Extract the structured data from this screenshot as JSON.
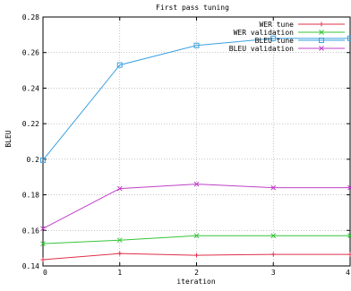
{
  "chart_data": {
    "type": "line",
    "title": "First pass tuning",
    "xlabel": "iteration",
    "ylabel": "BLEU",
    "x": [
      0,
      1,
      2,
      3,
      4
    ],
    "xlim": [
      0,
      4
    ],
    "ylim": [
      0.14,
      0.28
    ],
    "xticks": [
      "0",
      "1",
      "2",
      "3",
      "4"
    ],
    "yticks": [
      "0.14",
      "0.16",
      "0.18",
      "0.2",
      "0.22",
      "0.24",
      "0.26",
      "0.28"
    ],
    "grid": true,
    "legend_position": "top-right",
    "series": [
      {
        "name": "WER tune",
        "color": "#e0304a",
        "marker": "plus",
        "values": [
          0.1435,
          0.147,
          0.146,
          0.1465,
          0.1465
        ]
      },
      {
        "name": "WER validation",
        "color": "#36c43a",
        "marker": "cross",
        "values": [
          0.1525,
          0.1545,
          0.157,
          0.157,
          0.157
        ]
      },
      {
        "name": "BLEU tune",
        "color": "#3aa0e0",
        "marker": "square",
        "values": [
          0.1995,
          0.253,
          0.264,
          0.268,
          0.268
        ]
      },
      {
        "name": "BLEU validation",
        "color": "#c040c8",
        "marker": "cross",
        "values": [
          0.161,
          0.1835,
          0.186,
          0.184,
          0.184
        ]
      }
    ]
  }
}
